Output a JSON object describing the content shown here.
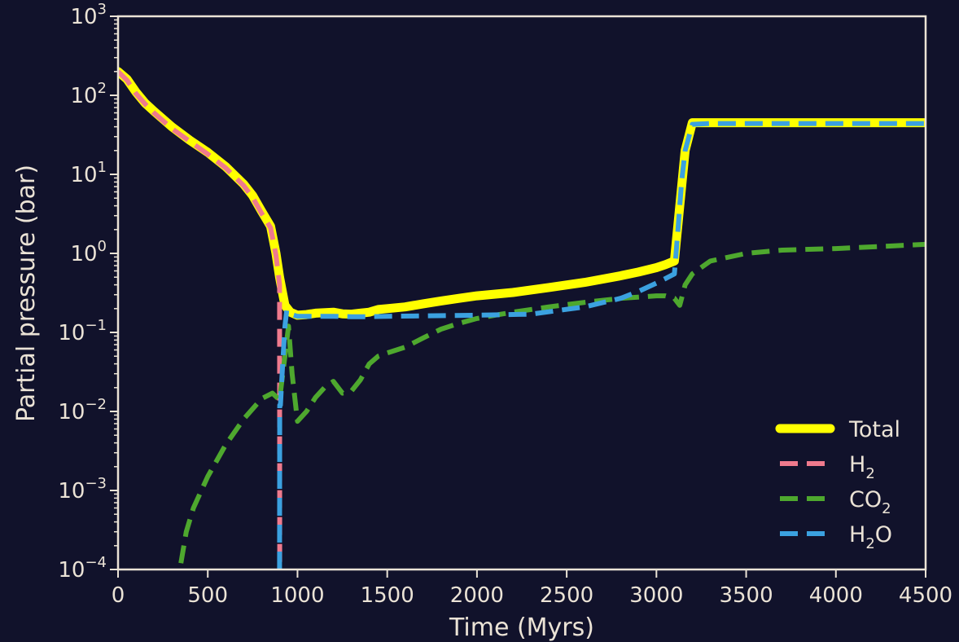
{
  "chart_data": {
    "type": "line",
    "xlabel": "Time (Myrs)",
    "ylabel": "Partial pressure (bar)",
    "xlim": [
      0,
      4500
    ],
    "ylim": [
      0.0001,
      1000
    ],
    "yscale": "log",
    "grid": false,
    "legend_position": "bottom-right",
    "x_ticks": [
      0,
      500,
      1000,
      1500,
      2000,
      2500,
      3000,
      3500,
      4000,
      4500
    ],
    "y_ticks": [
      {
        "value": 0.0001,
        "base": "10",
        "exp": "−4"
      },
      {
        "value": 0.001,
        "base": "10",
        "exp": "−3"
      },
      {
        "value": 0.01,
        "base": "10",
        "exp": "−2"
      },
      {
        "value": 0.1,
        "base": "10",
        "exp": "−1"
      },
      {
        "value": 1,
        "base": "10",
        "exp": "0"
      },
      {
        "value": 10,
        "base": "10",
        "exp": "1"
      },
      {
        "value": 100,
        "base": "10",
        "exp": "2"
      },
      {
        "value": 1000,
        "base": "10",
        "exp": "3"
      }
    ],
    "colors": {
      "background": "#11122b",
      "axes": "#ebe3d6",
      "text": "#ebe3d6"
    },
    "series": [
      {
        "name": "Total",
        "label_main": "Total",
        "label_sub": "",
        "label_tail": "",
        "color": "#ffff00",
        "style": "solid",
        "x": [
          0,
          50,
          100,
          150,
          200,
          300,
          400,
          500,
          600,
          700,
          750,
          800,
          850,
          880,
          900,
          930,
          960,
          1000,
          1050,
          1100,
          1200,
          1250,
          1300,
          1350,
          1400,
          1450,
          1500,
          1600,
          1700,
          1800,
          1900,
          2000,
          2200,
          2400,
          2600,
          2800,
          2900,
          3000,
          3050,
          3100,
          3130,
          3160,
          3200,
          3300,
          3500,
          4000,
          4500
        ],
        "y": [
          200,
          160,
          110,
          80,
          63,
          40,
          27,
          19,
          12.5,
          7.5,
          5.4,
          3.4,
          2.2,
          1.0,
          0.5,
          0.22,
          0.18,
          0.165,
          0.168,
          0.175,
          0.18,
          0.172,
          0.17,
          0.175,
          0.18,
          0.195,
          0.2,
          0.21,
          0.23,
          0.25,
          0.27,
          0.29,
          0.32,
          0.37,
          0.43,
          0.52,
          0.58,
          0.66,
          0.72,
          0.8,
          4.0,
          20,
          45,
          45,
          45,
          45,
          45
        ]
      },
      {
        "name": "H2",
        "label_main": "H",
        "label_sub": "2",
        "label_tail": "",
        "color": "#ef7a8d",
        "style": "dashed",
        "x": [
          0,
          50,
          100,
          150,
          200,
          300,
          400,
          500,
          600,
          700,
          750,
          800,
          850,
          880,
          895,
          900,
          901
        ],
        "y": [
          200,
          155,
          105,
          78,
          60,
          38,
          26,
          18,
          12,
          7.2,
          5.1,
          3.2,
          2.1,
          0.95,
          0.5,
          0.4,
          0.0001
        ]
      },
      {
        "name": "CO2",
        "label_main": "CO",
        "label_sub": "2",
        "label_tail": "",
        "color": "#4ea82e",
        "style": "dashed",
        "x": [
          350,
          380,
          420,
          500,
          600,
          700,
          800,
          860,
          900,
          930,
          950,
          970,
          1000,
          1050,
          1100,
          1150,
          1200,
          1250,
          1300,
          1350,
          1400,
          1450,
          1500,
          1600,
          1700,
          1800,
          1900,
          2000,
          2100,
          2200,
          2400,
          2600,
          2800,
          3000,
          3050,
          3100,
          3130,
          3160,
          3200,
          3300,
          3500,
          3700,
          4000,
          4500
        ],
        "y": [
          0.00012,
          0.0003,
          0.0006,
          0.0015,
          0.0038,
          0.008,
          0.0145,
          0.017,
          0.014,
          0.05,
          0.12,
          0.03,
          0.0075,
          0.01,
          0.015,
          0.02,
          0.024,
          0.017,
          0.018,
          0.025,
          0.04,
          0.05,
          0.055,
          0.065,
          0.085,
          0.11,
          0.13,
          0.15,
          0.165,
          0.18,
          0.21,
          0.24,
          0.27,
          0.29,
          0.29,
          0.27,
          0.22,
          0.4,
          0.55,
          0.8,
          1.0,
          1.1,
          1.15,
          1.3
        ]
      },
      {
        "name": "H2O",
        "label_main": "H",
        "label_sub": "2",
        "label_tail": "O",
        "color": "#3ba1e0",
        "style": "dashed",
        "x": [
          900,
          901,
          905,
          910,
          920,
          930,
          940,
          960,
          1000,
          1100,
          1200,
          1300,
          1400,
          1500,
          1700,
          2000,
          2300,
          2600,
          2800,
          2900,
          3000,
          3050,
          3100,
          3120,
          3140,
          3160,
          3200,
          3300,
          3500,
          4000,
          4500
        ],
        "y": [
          0.0001,
          0.012,
          0.012,
          0.02,
          0.05,
          0.12,
          0.19,
          0.17,
          0.16,
          0.16,
          0.16,
          0.158,
          0.158,
          0.16,
          0.162,
          0.165,
          0.17,
          0.21,
          0.27,
          0.33,
          0.42,
          0.48,
          0.55,
          2.0,
          8.0,
          20,
          43,
          44,
          44,
          44,
          44
        ]
      }
    ]
  }
}
